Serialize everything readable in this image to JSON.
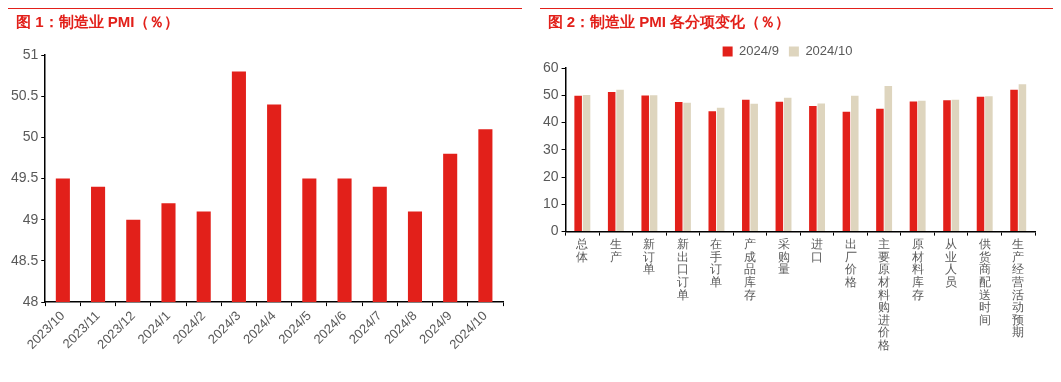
{
  "chart_data": [
    {
      "type": "bar",
      "title": "图 1：制造业 PMI（％）",
      "categories": [
        "2023/10",
        "2023/11",
        "2023/12",
        "2024/1",
        "2024/2",
        "2024/3",
        "2024/4",
        "2024/5",
        "2024/6",
        "2024/7",
        "2024/8",
        "2024/9",
        "2024/10"
      ],
      "values": [
        49.5,
        49.4,
        49.0,
        49.2,
        49.1,
        50.8,
        50.4,
        49.5,
        49.5,
        49.4,
        49.1,
        49.8,
        50.1
      ],
      "color": "#e2201a",
      "ylim": [
        48,
        51
      ],
      "yticks": [
        48,
        48.5,
        49,
        49.5,
        50,
        50.5,
        51
      ],
      "grid": false,
      "legend": false
    },
    {
      "type": "bar",
      "title": "图 2：制造业 PMI 各分项变化（％）",
      "categories": [
        "总体",
        "生产",
        "新订单",
        "新出口订单",
        "在手订单",
        "产成品库存",
        "采购量",
        "进口",
        "出厂价格",
        "主要原材料购进价格",
        "原材料库存",
        "从业人员",
        "供货商配送时间",
        "生产经营活动预期"
      ],
      "series": [
        {
          "name": "2024/9",
          "color": "#e2201a",
          "values": [
            49.8,
            51.2,
            49.9,
            47.5,
            44.1,
            48.4,
            47.6,
            46.1,
            44.0,
            45.1,
            47.7,
            48.2,
            49.5,
            52.0
          ]
        },
        {
          "name": "2024/10",
          "color": "#ded5be",
          "values": [
            50.1,
            52.0,
            50.0,
            47.3,
            45.4,
            46.9,
            49.1,
            47.0,
            49.8,
            53.4,
            48.0,
            48.4,
            49.6,
            54.0
          ]
        }
      ],
      "ylim": [
        0,
        60
      ],
      "yticks": [
        0,
        10,
        20,
        30,
        40,
        50,
        60
      ],
      "grid": false,
      "legend": "top"
    }
  ]
}
